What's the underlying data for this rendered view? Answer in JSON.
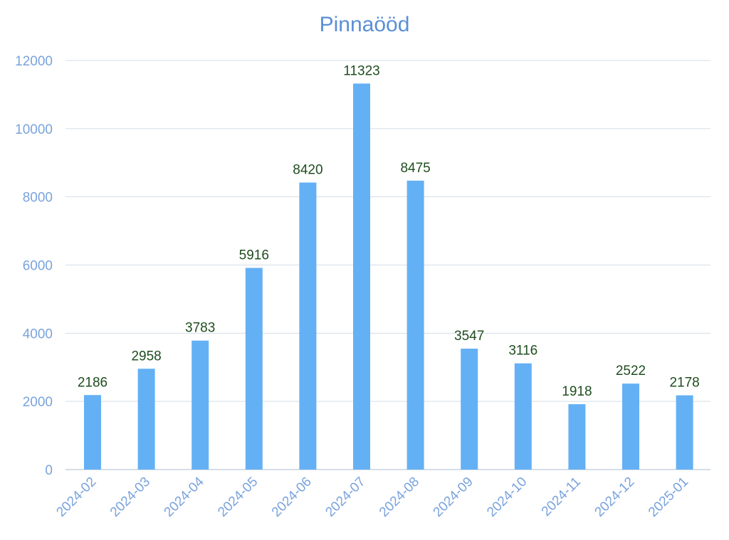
{
  "chart_data": {
    "type": "bar",
    "title": "Pinnaööd",
    "xlabel": "",
    "ylabel": "",
    "categories": [
      "2024-02",
      "2024-03",
      "2024-04",
      "2024-05",
      "2024-06",
      "2024-07",
      "2024-08",
      "2024-09",
      "2024-10",
      "2024-11",
      "2024-12",
      "2025-01"
    ],
    "values": [
      2186,
      2958,
      3783,
      5916,
      8420,
      11323,
      8475,
      3547,
      3116,
      1918,
      2522,
      2178
    ],
    "ylim": [
      0,
      12000
    ],
    "yticks": [
      "0",
      "2000",
      "4000",
      "6000",
      "8000",
      "10000",
      "12000"
    ],
    "grid": true,
    "legend": "none",
    "colors": {
      "bar": "#64b0f5",
      "title": "#5b8fd6",
      "tick_label": "#7aa3dc",
      "data_label": "#1f4d1f"
    }
  }
}
